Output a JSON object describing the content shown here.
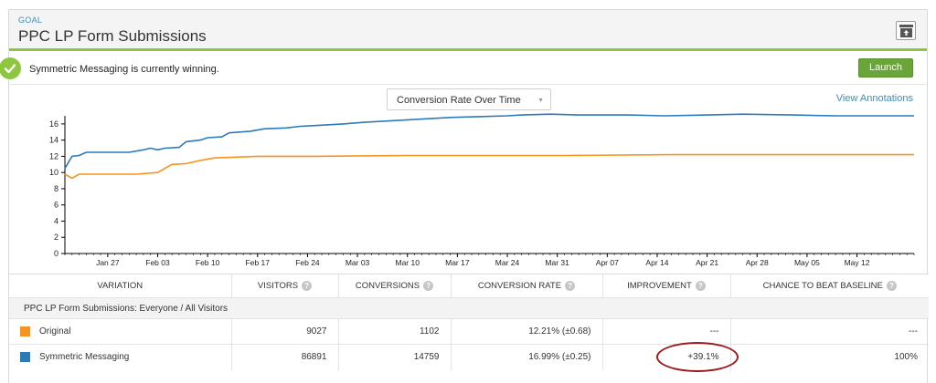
{
  "goal": {
    "label": "GOAL",
    "title": "PPC LP Form Submissions"
  },
  "winner": {
    "message": "Symmetric Messaging is currently winning.",
    "launch_label": "Launch"
  },
  "chart_controls": {
    "selected_view": "Conversion Rate Over Time",
    "annotations_link": "View Annotations"
  },
  "colors": {
    "accent_green": "#8dc63f",
    "link_blue": "#3c8dbc",
    "original": "#f7941d",
    "symmetric": "#2b7bb9"
  },
  "chart_data": {
    "type": "line",
    "title": "",
    "xlabel": "",
    "ylabel": "",
    "ylim": [
      0,
      17
    ],
    "yticks": [
      0,
      2,
      4,
      6,
      8,
      10,
      12,
      14,
      16
    ],
    "x_range_days": [
      0,
      119
    ],
    "xtick_labels": [
      "Jan 27",
      "Feb 03",
      "Feb 10",
      "Feb 17",
      "Feb 24",
      "Mar 03",
      "Mar 10",
      "Mar 17",
      "Mar 24",
      "Mar 31",
      "Apr 07",
      "Apr 14",
      "Apr 21",
      "Apr 28",
      "May 05",
      "May 12"
    ],
    "xtick_days": [
      6,
      13,
      20,
      27,
      34,
      41,
      48,
      55,
      62,
      69,
      76,
      83,
      90,
      97,
      104,
      111
    ],
    "grid": false,
    "legend": "none",
    "series": [
      {
        "name": "Symmetric Messaging",
        "color": "#2b7bb9",
        "points": [
          [
            0,
            10.5
          ],
          [
            1,
            12.0
          ],
          [
            2,
            12.1
          ],
          [
            3,
            12.5
          ],
          [
            5,
            12.5
          ],
          [
            9,
            12.5
          ],
          [
            11,
            12.8
          ],
          [
            12,
            13.0
          ],
          [
            13,
            12.8
          ],
          [
            14,
            13.0
          ],
          [
            16,
            13.1
          ],
          [
            17,
            13.8
          ],
          [
            19,
            14.0
          ],
          [
            20,
            14.3
          ],
          [
            22,
            14.4
          ],
          [
            23,
            14.9
          ],
          [
            26,
            15.1
          ],
          [
            28,
            15.4
          ],
          [
            31,
            15.5
          ],
          [
            33,
            15.7
          ],
          [
            35,
            15.8
          ],
          [
            37,
            15.9
          ],
          [
            39,
            16.0
          ],
          [
            42,
            16.2
          ],
          [
            46,
            16.4
          ],
          [
            50,
            16.6
          ],
          [
            54,
            16.8
          ],
          [
            58,
            16.9
          ],
          [
            62,
            17.0
          ],
          [
            64,
            17.1
          ],
          [
            68,
            17.2
          ],
          [
            72,
            17.1
          ],
          [
            79,
            17.1
          ],
          [
            84,
            17.0
          ],
          [
            90,
            17.1
          ],
          [
            95,
            17.2
          ],
          [
            102,
            17.1
          ],
          [
            108,
            17.0
          ],
          [
            119,
            17.0
          ]
        ]
      },
      {
        "name": "Original",
        "color": "#f7941d",
        "points": [
          [
            0,
            9.8
          ],
          [
            1,
            9.3
          ],
          [
            2,
            9.8
          ],
          [
            4,
            9.8
          ],
          [
            10,
            9.8
          ],
          [
            13,
            10.0
          ],
          [
            14,
            10.5
          ],
          [
            15,
            11.0
          ],
          [
            17,
            11.1
          ],
          [
            19,
            11.5
          ],
          [
            21,
            11.8
          ],
          [
            24,
            11.9
          ],
          [
            27,
            12.0
          ],
          [
            35,
            12.0
          ],
          [
            48,
            12.1
          ],
          [
            70,
            12.1
          ],
          [
            85,
            12.2
          ],
          [
            119,
            12.2
          ]
        ]
      }
    ]
  },
  "table": {
    "headers": {
      "variation": "VARIATION",
      "visitors": "VISITORS",
      "conversions": "CONVERSIONS",
      "conversion_rate": "CONVERSION RATE",
      "improvement": "IMPROVEMENT",
      "chance": "CHANCE TO BEAT BASELINE"
    },
    "help_glyph": "?",
    "segment": "PPC LP Form Submissions: Everyone / All Visitors",
    "rows": [
      {
        "name": "Original",
        "visitors": "9027",
        "conversions": "1102",
        "conversion_rate": "12.21% (±0.68)",
        "improvement": "---",
        "chance": "---"
      },
      {
        "name": "Symmetric Messaging",
        "visitors": "86891",
        "conversions": "14759",
        "conversion_rate": "16.99% (±0.25)",
        "improvement": "+39.1%",
        "chance": "100%"
      }
    ]
  }
}
